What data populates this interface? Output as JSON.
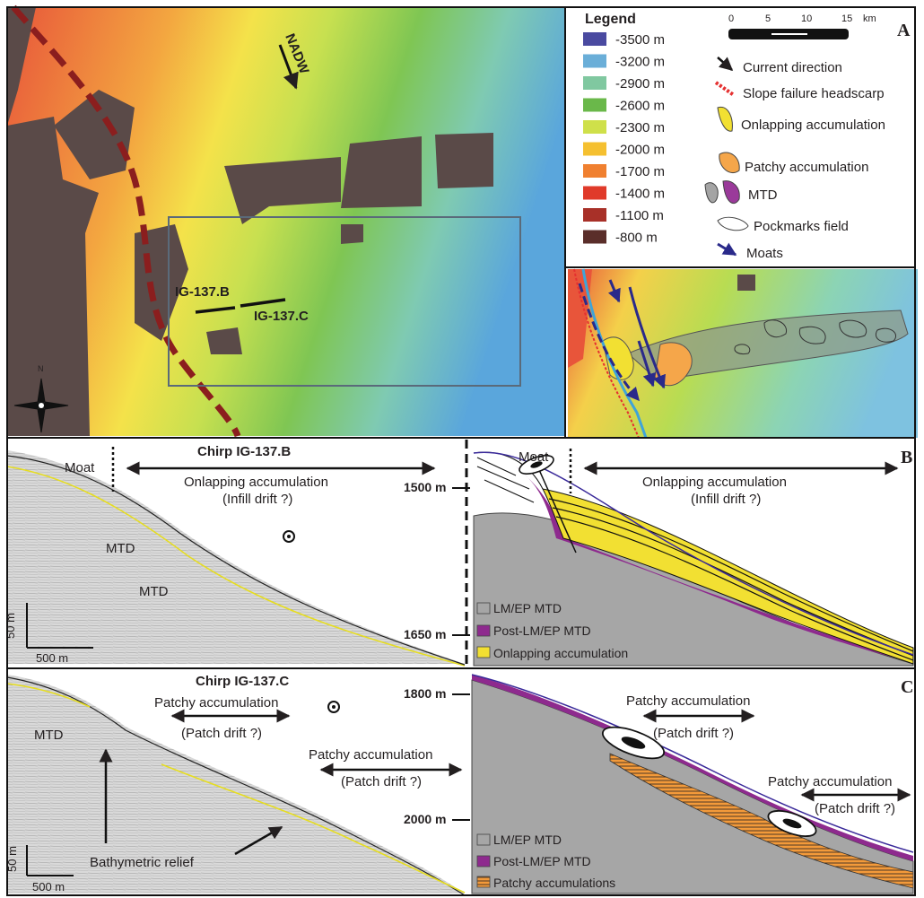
{
  "panels": {
    "a": {
      "letter": "A",
      "current_label": "NADW",
      "profile_labels": [
        "IG-137.B",
        "IG-137.C"
      ],
      "north_label": "N",
      "legend": {
        "title": "Legend",
        "depth_classes": [
          {
            "label": "-3500 m",
            "color": "#4a4aa0"
          },
          {
            "label": "-3200 m",
            "color": "#6aaed8"
          },
          {
            "label": "-2900 m",
            "color": "#80c8a0"
          },
          {
            "label": "-2600 m",
            "color": "#6ab84a"
          },
          {
            "label": "-2300 m",
            "color": "#cfe04a"
          },
          {
            "label": "-2000 m",
            "color": "#f5c030"
          },
          {
            "label": "-1700 m",
            "color": "#f08030"
          },
          {
            "label": "-1400 m",
            "color": "#e03a2a"
          },
          {
            "label": "-1100 m",
            "color": "#a83028"
          },
          {
            "label": "-800 m",
            "color": "#5a2e2a"
          }
        ],
        "scale_ticks": [
          "0",
          "5",
          "10",
          "15"
        ],
        "scale_unit": "km",
        "symbols": [
          "Current direction",
          "Slope failure headscarp",
          "Onlapping accumulation",
          "Patchy accumulation",
          "MTD",
          "Pockmarks field",
          "Moats"
        ]
      }
    },
    "b": {
      "letter": "B",
      "chirp_title": "Chirp IG-137.B",
      "moat_label": "Moat",
      "onlap_label_1": "Onlapping accumulation",
      "onlap_label_2": "(Infill drift ?)",
      "mtd_label": "MTD",
      "scale_v": "50 m",
      "scale_h": "500 m",
      "depth_labels": [
        "1500 m",
        "1650 m"
      ],
      "legend": [
        "LM/EP MTD",
        "Post-LM/EP MTD",
        "Onlapping accumulation"
      ]
    },
    "c": {
      "letter": "C",
      "chirp_title": "Chirp IG-137.C",
      "mtd_label": "MTD",
      "patchy_label_1": "Patchy accumulation",
      "patchy_label_2": "(Patch drift ?)",
      "relief_label": "Bathymetric relief",
      "scale_v": "50 m",
      "scale_h": "500 m",
      "depth_labels": [
        "1800 m",
        "2000 m"
      ],
      "legend": [
        "LM/EP MTD",
        "Post-LM/EP MTD",
        "Patchy accumulations"
      ]
    }
  }
}
